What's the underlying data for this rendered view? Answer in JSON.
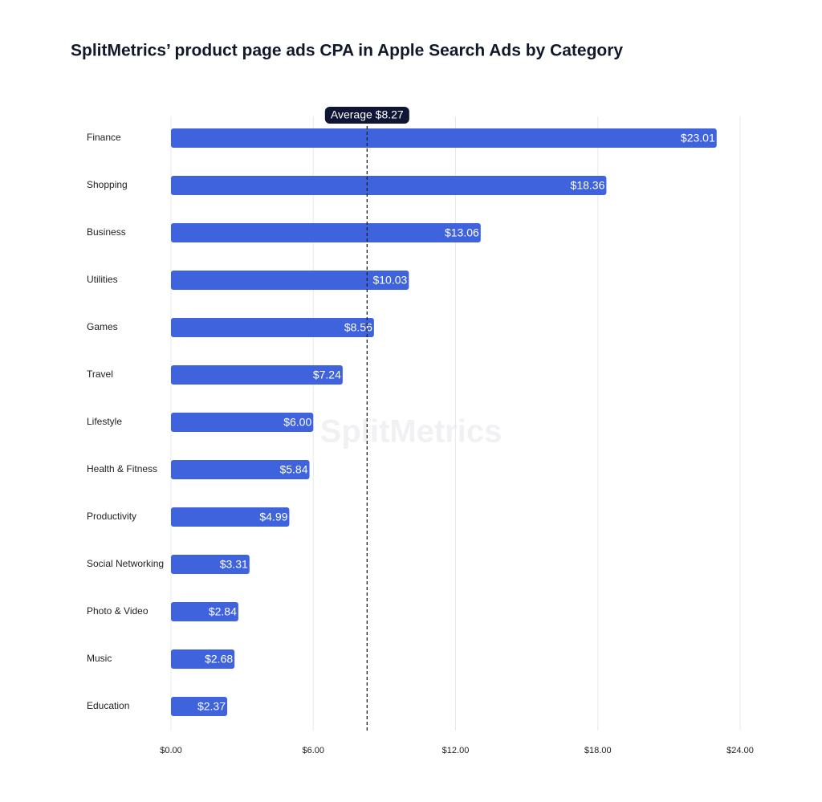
{
  "chart_data": {
    "type": "hbar",
    "title": "SplitMetrics’ product page ads CPA in Apple Search Ads by Category",
    "watermark": "SplitMetrics",
    "categories": [
      "Finance",
      "Shopping",
      "Business",
      "Utilities",
      "Games",
      "Travel",
      "Lifestyle",
      "Health & Fitness",
      "Productivity",
      "Social Networking",
      "Photo & Video",
      "Music",
      "Education"
    ],
    "values": [
      23.01,
      18.36,
      13.06,
      10.03,
      8.56,
      7.24,
      6.0,
      5.84,
      4.99,
      3.31,
      2.84,
      2.68,
      2.37
    ],
    "value_labels": [
      "$23.01",
      "$18.36",
      "$13.06",
      "$10.03",
      "$8.56",
      "$7.24",
      "$6.00",
      "$5.84",
      "$4.99",
      "$3.31",
      "$2.84",
      "$2.68",
      "$2.37"
    ],
    "color": "#3f63dd",
    "xlim": [
      0,
      24
    ],
    "xticks": [
      {
        "value": 0,
        "label": "$0.00"
      },
      {
        "value": 6,
        "label": "$6.00"
      },
      {
        "value": 12,
        "label": "$12.00"
      },
      {
        "value": 18,
        "label": "$18.00"
      },
      {
        "value": 24,
        "label": "$24.00"
      }
    ],
    "grid": true,
    "reference_line": {
      "value": 8.27,
      "label": "Average $8.27"
    }
  }
}
